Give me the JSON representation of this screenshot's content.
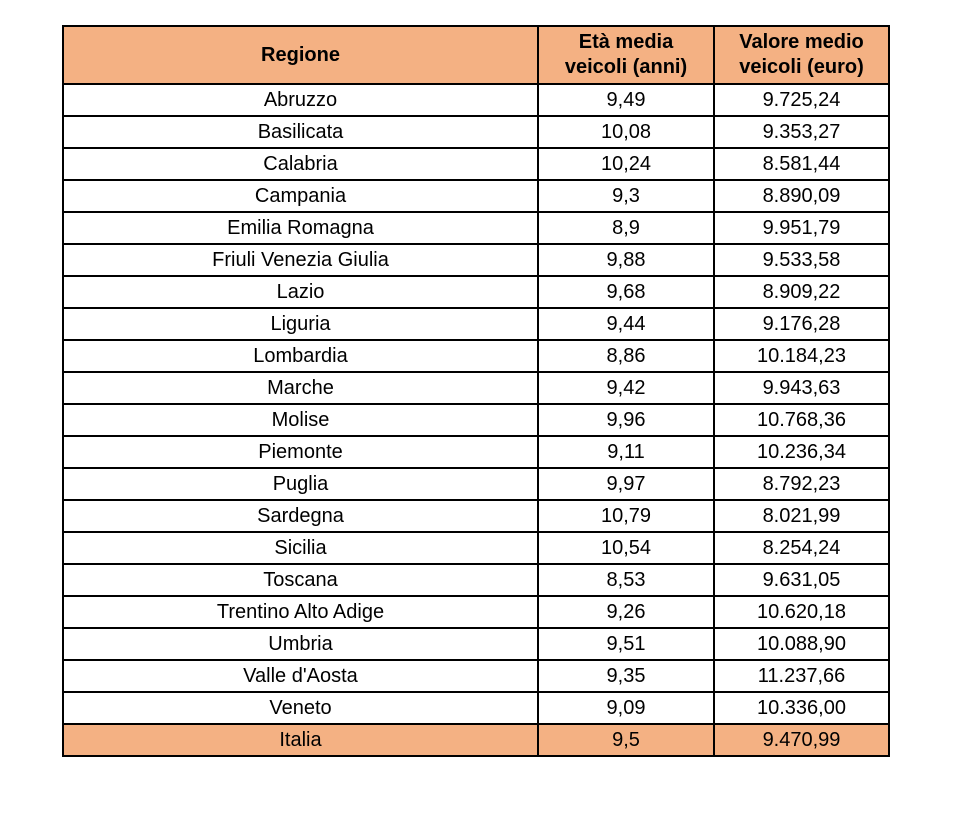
{
  "table": {
    "header": {
      "region": "Regione",
      "age": "Età media\nveicoli (anni)",
      "value": "Valore medio\nveicoli (euro)"
    },
    "rows": [
      {
        "region": "Abruzzo",
        "age": "9,49",
        "value": "9.725,24"
      },
      {
        "region": "Basilicata",
        "age": "10,08",
        "value": "9.353,27"
      },
      {
        "region": "Calabria",
        "age": "10,24",
        "value": "8.581,44"
      },
      {
        "region": "Campania",
        "age": "9,3",
        "value": "8.890,09"
      },
      {
        "region": "Emilia Romagna",
        "age": "8,9",
        "value": "9.951,79"
      },
      {
        "region": "Friuli Venezia Giulia",
        "age": "9,88",
        "value": "9.533,58"
      },
      {
        "region": "Lazio",
        "age": "9,68",
        "value": "8.909,22"
      },
      {
        "region": "Liguria",
        "age": "9,44",
        "value": "9.176,28"
      },
      {
        "region": "Lombardia",
        "age": "8,86",
        "value": "10.184,23"
      },
      {
        "region": "Marche",
        "age": "9,42",
        "value": "9.943,63"
      },
      {
        "region": "Molise",
        "age": "9,96",
        "value": "10.768,36"
      },
      {
        "region": "Piemonte",
        "age": "9,11",
        "value": "10.236,34"
      },
      {
        "region": "Puglia",
        "age": "9,97",
        "value": "8.792,23"
      },
      {
        "region": "Sardegna",
        "age": "10,79",
        "value": "8.021,99"
      },
      {
        "region": "Sicilia",
        "age": "10,54",
        "value": "8.254,24"
      },
      {
        "region": "Toscana",
        "age": "8,53",
        "value": "9.631,05"
      },
      {
        "region": "Trentino Alto Adige",
        "age": "9,26",
        "value": "10.620,18"
      },
      {
        "region": "Umbria",
        "age": "9,51",
        "value": "10.088,90"
      },
      {
        "region": "Valle d'Aosta",
        "age": "9,35",
        "value": "11.237,66"
      },
      {
        "region": "Veneto",
        "age": "9,09",
        "value": "10.336,00"
      }
    ],
    "footer": {
      "region": "Italia",
      "age": "9,5",
      "value": "9.470,99"
    }
  },
  "colors": {
    "header_bg": "#F4B183",
    "footer_bg": "#F4B183",
    "border": "#000000",
    "row_bg": "#FFFFFF",
    "text": "#000000"
  },
  "chart_data": {
    "type": "table",
    "title": "",
    "columns": [
      "Regione",
      "Età media veicoli (anni)",
      "Valore medio veicoli (euro)"
    ],
    "rows": [
      [
        "Abruzzo",
        9.49,
        9725.24
      ],
      [
        "Basilicata",
        10.08,
        9353.27
      ],
      [
        "Calabria",
        10.24,
        8581.44
      ],
      [
        "Campania",
        9.3,
        8890.09
      ],
      [
        "Emilia Romagna",
        8.9,
        9951.79
      ],
      [
        "Friuli Venezia Giulia",
        9.88,
        9533.58
      ],
      [
        "Lazio",
        9.68,
        8909.22
      ],
      [
        "Liguria",
        9.44,
        9176.28
      ],
      [
        "Lombardia",
        8.86,
        10184.23
      ],
      [
        "Marche",
        9.42,
        9943.63
      ],
      [
        "Molise",
        9.96,
        10768.36
      ],
      [
        "Piemonte",
        9.11,
        10236.34
      ],
      [
        "Puglia",
        9.97,
        8792.23
      ],
      [
        "Sardegna",
        10.79,
        8021.99
      ],
      [
        "Sicilia",
        10.54,
        8254.24
      ],
      [
        "Toscana",
        8.53,
        9631.05
      ],
      [
        "Trentino Alto Adige",
        9.26,
        10620.18
      ],
      [
        "Umbria",
        9.51,
        10088.9
      ],
      [
        "Valle d'Aosta",
        9.35,
        11237.66
      ],
      [
        "Veneto",
        9.09,
        10336.0
      ],
      [
        "Italia",
        9.5,
        9470.99
      ]
    ]
  }
}
